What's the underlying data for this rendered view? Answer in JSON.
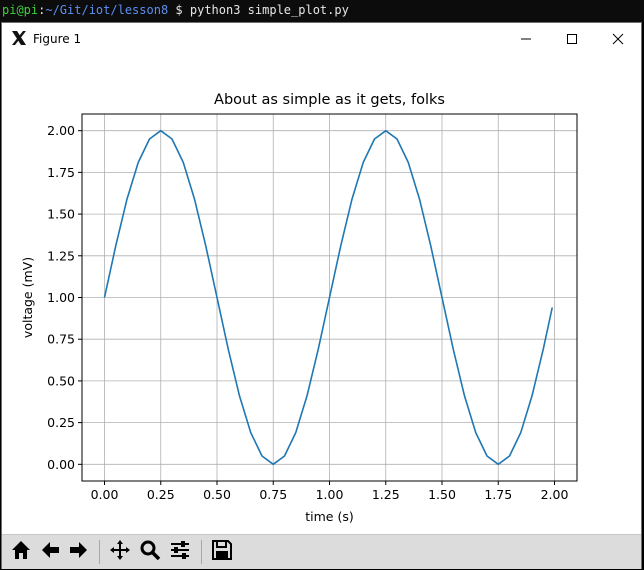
{
  "terminal": {
    "user_host": "pi@pi",
    "separator": ":",
    "path": "~/Git/iot/lesson8",
    "prompt": " $ ",
    "command": "python3 simple_plot.py"
  },
  "window": {
    "title": "Figure 1",
    "app_icon": "matplotlib-x-icon",
    "minimize_icon": "minimize-icon",
    "maximize_icon": "maximize-icon",
    "close_icon": "close-icon"
  },
  "toolbar": {
    "buttons": [
      {
        "icon": "home-icon"
      },
      {
        "icon": "back-arrow-icon"
      },
      {
        "icon": "forward-arrow-icon"
      },
      {
        "icon": "pan-icon"
      },
      {
        "icon": "zoom-icon"
      },
      {
        "icon": "subplots-config-icon"
      },
      {
        "icon": "save-icon"
      }
    ]
  },
  "chart_data": {
    "type": "line",
    "title": "About as simple as it gets, folks",
    "xlabel": "time (s)",
    "ylabel": "voltage (mV)",
    "xlim": [
      -0.1,
      2.1
    ],
    "ylim": [
      -0.1,
      2.1
    ],
    "xticks": [
      "0.00",
      "0.25",
      "0.50",
      "0.75",
      "1.00",
      "1.25",
      "1.50",
      "1.75",
      "2.00"
    ],
    "yticks": [
      "0.00",
      "0.25",
      "0.50",
      "0.75",
      "1.00",
      "1.25",
      "1.50",
      "1.75",
      "2.00"
    ],
    "grid": true,
    "line_color": "#1f77b4",
    "series": [
      {
        "x": [
          0.0,
          0.05,
          0.1,
          0.15,
          0.2,
          0.25,
          0.3,
          0.35,
          0.4,
          0.45,
          0.5,
          0.55,
          0.6,
          0.65,
          0.7,
          0.75,
          0.8,
          0.85,
          0.9,
          0.95,
          1.0,
          1.05,
          1.1,
          1.15,
          1.2,
          1.25,
          1.3,
          1.35,
          1.4,
          1.45,
          1.5,
          1.55,
          1.6,
          1.65,
          1.7,
          1.75,
          1.8,
          1.85,
          1.9,
          1.95,
          1.99
        ],
        "y": [
          1.0,
          1.31,
          1.59,
          1.81,
          1.95,
          2.0,
          1.95,
          1.81,
          1.59,
          1.31,
          1.0,
          0.69,
          0.41,
          0.19,
          0.05,
          0.0,
          0.05,
          0.19,
          0.41,
          0.69,
          1.0,
          1.31,
          1.59,
          1.81,
          1.95,
          2.0,
          1.95,
          1.81,
          1.59,
          1.31,
          1.0,
          0.69,
          0.41,
          0.19,
          0.05,
          0.0,
          0.05,
          0.19,
          0.41,
          0.69,
          0.94
        ]
      }
    ]
  }
}
